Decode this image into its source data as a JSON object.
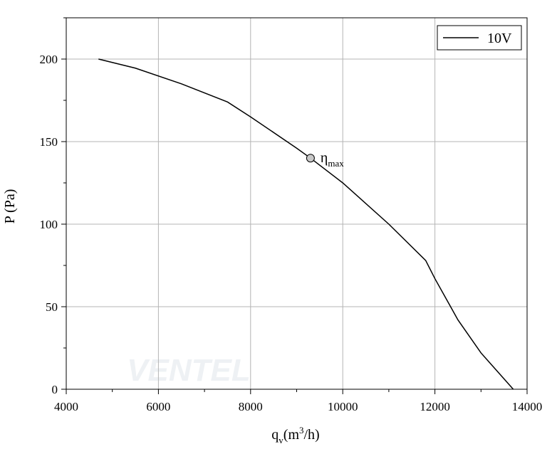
{
  "chart_data": {
    "type": "line",
    "x": [
      4700,
      5500,
      6500,
      7500,
      8000,
      9000,
      9300,
      10000,
      11000,
      11800,
      12000,
      12500,
      13000,
      13700
    ],
    "series": [
      {
        "name": "10V",
        "color": "#000000",
        "values": [
          200,
          194.5,
          185,
          174,
          165,
          146,
          140,
          125,
          100,
          78,
          67,
          42,
          22,
          0
        ]
      }
    ],
    "xlim": [
      4000,
      14000
    ],
    "xticks": [
      4000,
      6000,
      8000,
      10000,
      12000,
      14000
    ],
    "xticks_minor": [
      5000,
      7000,
      9000,
      11000,
      13000
    ],
    "ylim": [
      0,
      225
    ],
    "yticks": [
      0,
      50,
      100,
      150,
      200
    ],
    "yticks_minor": [
      25,
      75,
      125,
      175,
      225
    ],
    "grid": true,
    "legend": "upper right",
    "ylabel": "P (Pa)",
    "xlabel_parts": [
      "q",
      "v",
      "(m",
      "3",
      "/h)"
    ],
    "annotation": {
      "x": 9300,
      "y": 140,
      "text": "η",
      "sub": "max",
      "color": "#c8c8c8"
    },
    "watermark": "VENTEL"
  }
}
